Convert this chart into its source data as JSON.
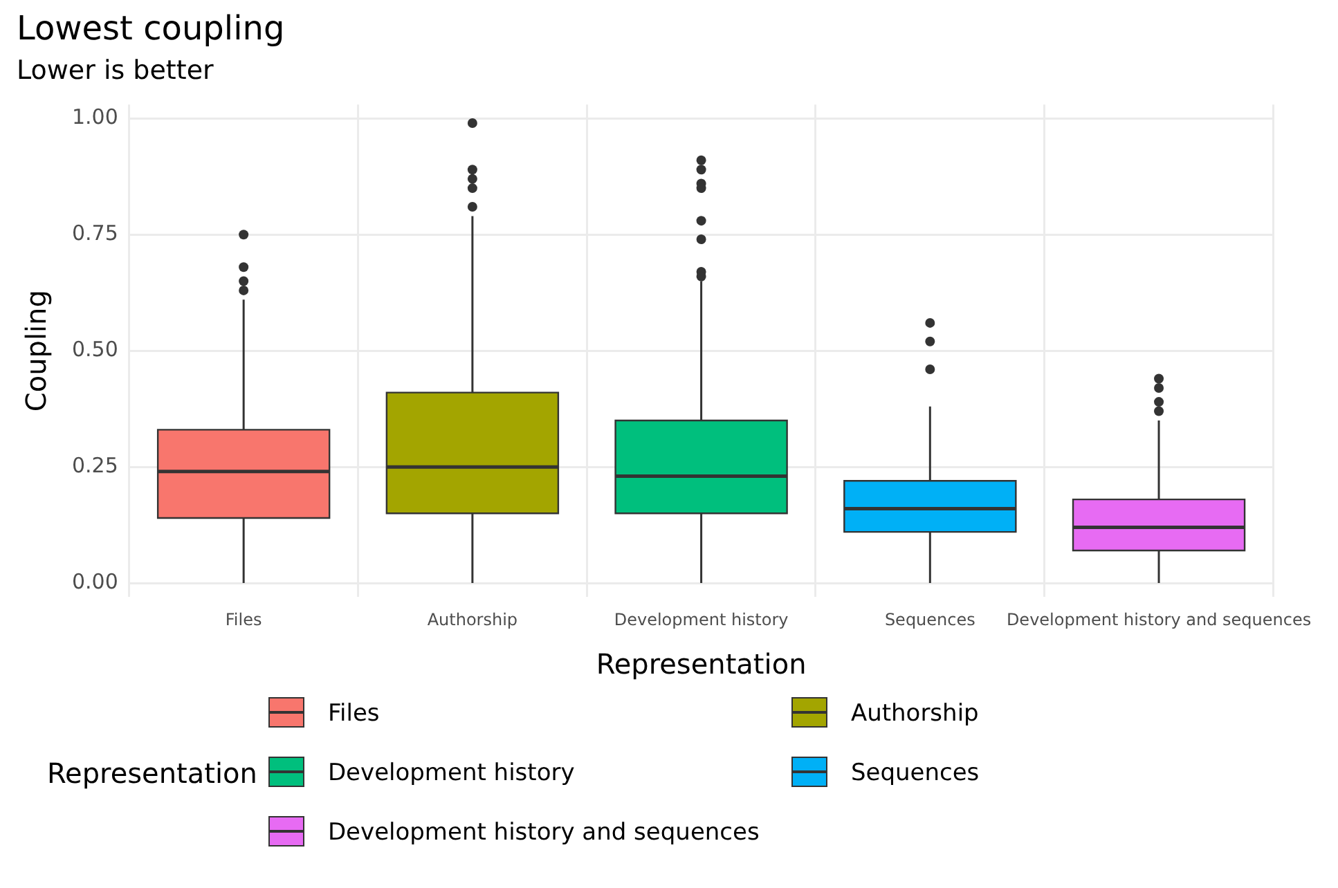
{
  "chart_data": {
    "type": "box",
    "title": "Lowest coupling",
    "subtitle": "Lower is better",
    "xlabel": "Representation",
    "ylabel": "Coupling",
    "legend_title": "Representation",
    "categories": [
      "Files",
      "Authorship",
      "Development history",
      "Sequences",
      "Development history and sequences"
    ],
    "series": [
      {
        "name": "Files",
        "color": "#f8766d",
        "boxes": [
          {
            "low": 0,
            "q1": 0.14,
            "median": 0.24,
            "q3": 0.33,
            "high": 0.61,
            "outliers": [
              0.63,
              0.65,
              0.68,
              0.75
            ]
          },
          null,
          null,
          null,
          null
        ]
      },
      {
        "name": "Authorship",
        "color": "#a3a500",
        "boxes": [
          null,
          {
            "low": 0,
            "q1": 0.15,
            "median": 0.25,
            "q3": 0.41,
            "high": 0.79,
            "outliers": [
              0.81,
              0.85,
              0.87,
              0.89,
              0.99
            ]
          },
          null,
          null,
          null
        ]
      },
      {
        "name": "Development history",
        "color": "#00bf7d",
        "boxes": [
          null,
          null,
          {
            "low": 0,
            "q1": 0.15,
            "median": 0.23,
            "q3": 0.35,
            "high": 0.65,
            "outliers": [
              0.66,
              0.67,
              0.74,
              0.78,
              0.85,
              0.86,
              0.89,
              0.91
            ]
          },
          null,
          null
        ]
      },
      {
        "name": "Sequences",
        "color": "#00b0f6",
        "boxes": [
          null,
          null,
          null,
          {
            "low": 0,
            "q1": 0.11,
            "median": 0.16,
            "q3": 0.22,
            "high": 0.38,
            "outliers": [
              0.46,
              0.52,
              0.56
            ]
          },
          null
        ]
      },
      {
        "name": "Development history and sequences",
        "color": "#e76bf3",
        "boxes": [
          null,
          null,
          null,
          null,
          {
            "low": 0,
            "q1": 0.07,
            "median": 0.12,
            "q3": 0.18,
            "high": 0.35,
            "outliers": [
              0.37,
              0.39,
              0.42,
              0.44
            ]
          }
        ]
      }
    ],
    "ylim": [
      -0.03,
      1.03
    ],
    "yticks": [
      {
        "value": 0,
        "label": "0.00"
      },
      {
        "value": 0.25,
        "label": "0.25"
      },
      {
        "value": 0.5,
        "label": "0.50"
      },
      {
        "value": 0.75,
        "label": "0.75"
      },
      {
        "value": 1,
        "label": "1.00"
      }
    ],
    "grid": true,
    "legend": "bottom"
  }
}
